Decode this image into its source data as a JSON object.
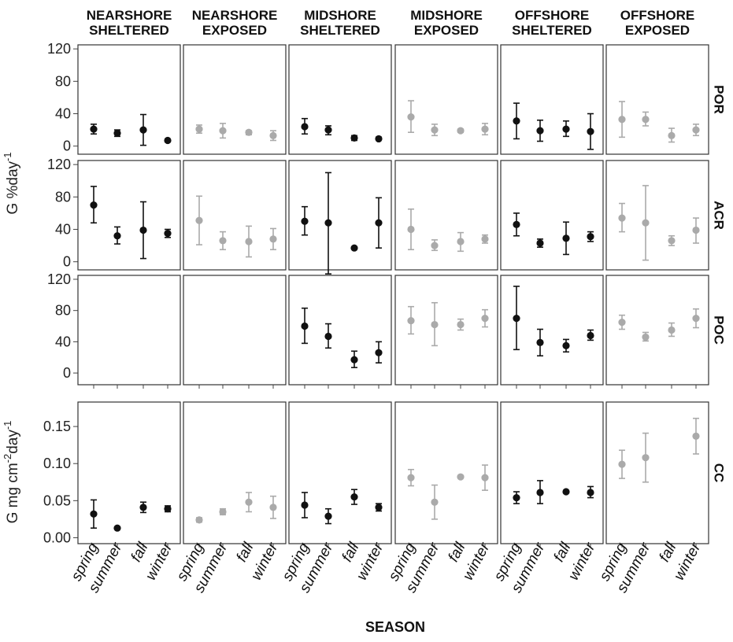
{
  "chart_data": {
    "type": "scatter",
    "subtype": "faceted point plot with error bars",
    "x_categories": [
      "spring",
      "summer",
      "fall",
      "winter"
    ],
    "xlabel": "SEASON",
    "col_headers": [
      [
        "NEARSHORE",
        "SHELTERED"
      ],
      [
        "NEARSHORE",
        "EXPOSED"
      ],
      [
        "MIDSHORE",
        "SHELTERED"
      ],
      [
        "MIDSHORE",
        "EXPOSED"
      ],
      [
        "OFFSHORE",
        "SHELTERED"
      ],
      [
        "OFFSHORE",
        "EXPOSED"
      ]
    ],
    "colors": {
      "sheltered": "#111111",
      "exposed": "#aaaaaa"
    },
    "col_color": [
      "sheltered",
      "exposed",
      "sheltered",
      "exposed",
      "sheltered",
      "exposed"
    ],
    "y_axis_titles": {
      "percent": {
        "main": "G %day",
        "sup": "-1"
      },
      "calcification": {
        "main": "G  mg cm",
        "sup1": "-2",
        "mid": "day",
        "sup2": "-1"
      }
    },
    "rows": [
      {
        "label": "POR",
        "ylim": [
          -10,
          125
        ],
        "yticks": [
          0,
          40,
          80,
          120
        ],
        "tick_labels": [
          "0",
          "40",
          "80",
          "120"
        ],
        "panels": [
          [
            [
              21,
              15,
              27
            ],
            [
              16,
              12,
              20
            ],
            [
              20,
              1,
              39
            ],
            [
              7,
              6,
              8
            ]
          ],
          [
            [
              21,
              16,
              26
            ],
            [
              19,
              10,
              28
            ],
            [
              17,
              14,
              19
            ],
            [
              13,
              7,
              19
            ]
          ],
          [
            [
              24,
              15,
              34
            ],
            [
              20,
              14,
              25
            ],
            [
              10,
              7,
              13
            ],
            [
              9,
              8,
              11
            ]
          ],
          [
            [
              36,
              17,
              56
            ],
            [
              20,
              13,
              27
            ],
            [
              19,
              17,
              21
            ],
            [
              21,
              14,
              28
            ]
          ],
          [
            [
              31,
              9,
              53
            ],
            [
              19,
              6,
              32
            ],
            [
              21,
              12,
              31
            ],
            [
              18,
              -4,
              40
            ]
          ],
          [
            [
              33,
              11,
              55
            ],
            [
              33,
              25,
              42
            ],
            [
              13,
              5,
              22
            ],
            [
              20,
              13,
              27
            ]
          ]
        ]
      },
      {
        "label": "ACR",
        "ylim": [
          -10,
          125
        ],
        "yticks": [
          0,
          40,
          80,
          120
        ],
        "tick_labels": [
          "0",
          "40",
          "80",
          "120"
        ],
        "panels": [
          [
            [
              70,
              48,
              93
            ],
            [
              32,
              22,
              43
            ],
            [
              39,
              4,
              74
            ],
            [
              35,
              30,
              40
            ]
          ],
          [
            [
              51,
              21,
              81
            ],
            [
              26,
              15,
              37
            ],
            [
              25,
              6,
              44
            ],
            [
              28,
              15,
              41
            ]
          ],
          [
            [
              50,
              33,
              68
            ],
            [
              48,
              -15,
              110
            ],
            [
              17,
              16,
              18
            ],
            [
              48,
              17,
              79
            ]
          ],
          [
            [
              40,
              15,
              65
            ],
            [
              20,
              14,
              27
            ],
            [
              25,
              13,
              36
            ],
            [
              28,
              23,
              33
            ]
          ],
          [
            [
              46,
              32,
              60
            ],
            [
              23,
              18,
              28
            ],
            [
              29,
              9,
              49
            ],
            [
              31,
              25,
              37
            ]
          ],
          [
            [
              54,
              37,
              72
            ],
            [
              48,
              2,
              94
            ],
            [
              26,
              20,
              32
            ],
            [
              39,
              23,
              54
            ]
          ]
        ]
      },
      {
        "label": "POC",
        "ylim": [
          -15,
          125
        ],
        "yticks": [
          0,
          40,
          80,
          120
        ],
        "tick_labels": [
          "0",
          "40",
          "80",
          "120"
        ],
        "panels": [
          [],
          [],
          [
            [
              60,
              38,
              83
            ],
            [
              47,
              32,
              63
            ],
            [
              17,
              7,
              28
            ],
            [
              26,
              13,
              40
            ]
          ],
          [
            [
              67,
              50,
              85
            ],
            [
              62,
              35,
              90
            ],
            [
              62,
              55,
              69
            ],
            [
              70,
              59,
              81
            ]
          ],
          [
            [
              70,
              30,
              111
            ],
            [
              39,
              22,
              56
            ],
            [
              35,
              27,
              43
            ],
            [
              48,
              42,
              55
            ]
          ],
          [
            [
              65,
              56,
              74
            ],
            [
              46,
              41,
              52
            ],
            [
              55,
              47,
              64
            ],
            [
              70,
              58,
              82
            ]
          ]
        ]
      },
      {
        "label": "CC",
        "ylim": [
          -0.008,
          0.183
        ],
        "yticks": [
          0.0,
          0.05,
          0.1,
          0.15
        ],
        "tick_labels": [
          "0.00",
          "0.05",
          "0.10",
          "0.15"
        ],
        "panels": [
          [
            [
              0.032,
              0.013,
              0.051
            ],
            [
              0.013,
              0.012,
              0.014
            ],
            [
              0.041,
              0.034,
              0.048
            ],
            [
              0.039,
              0.035,
              0.043
            ]
          ],
          [
            [
              0.024,
              0.021,
              0.027
            ],
            [
              0.035,
              0.031,
              0.039
            ],
            [
              0.048,
              0.035,
              0.061
            ],
            [
              0.041,
              0.026,
              0.056
            ]
          ],
          [
            [
              0.044,
              0.027,
              0.061
            ],
            [
              0.029,
              0.019,
              0.039
            ],
            [
              0.055,
              0.045,
              0.065
            ],
            [
              0.041,
              0.036,
              0.046
            ]
          ],
          [
            [
              0.081,
              0.07,
              0.092
            ],
            [
              0.048,
              0.025,
              0.071
            ],
            [
              0.082,
              0.081,
              0.083
            ],
            [
              0.081,
              0.064,
              0.098
            ]
          ],
          [
            [
              0.054,
              0.046,
              0.062
            ],
            [
              0.061,
              0.046,
              0.077
            ],
            [
              0.062,
              0.061,
              0.063
            ],
            [
              0.061,
              0.054,
              0.069
            ]
          ],
          [
            [
              0.099,
              0.08,
              0.118
            ],
            [
              0.108,
              0.075,
              0.141
            ],
            [
              null,
              null,
              null
            ],
            [
              0.137,
              0.113,
              0.161
            ]
          ]
        ]
      }
    ]
  }
}
